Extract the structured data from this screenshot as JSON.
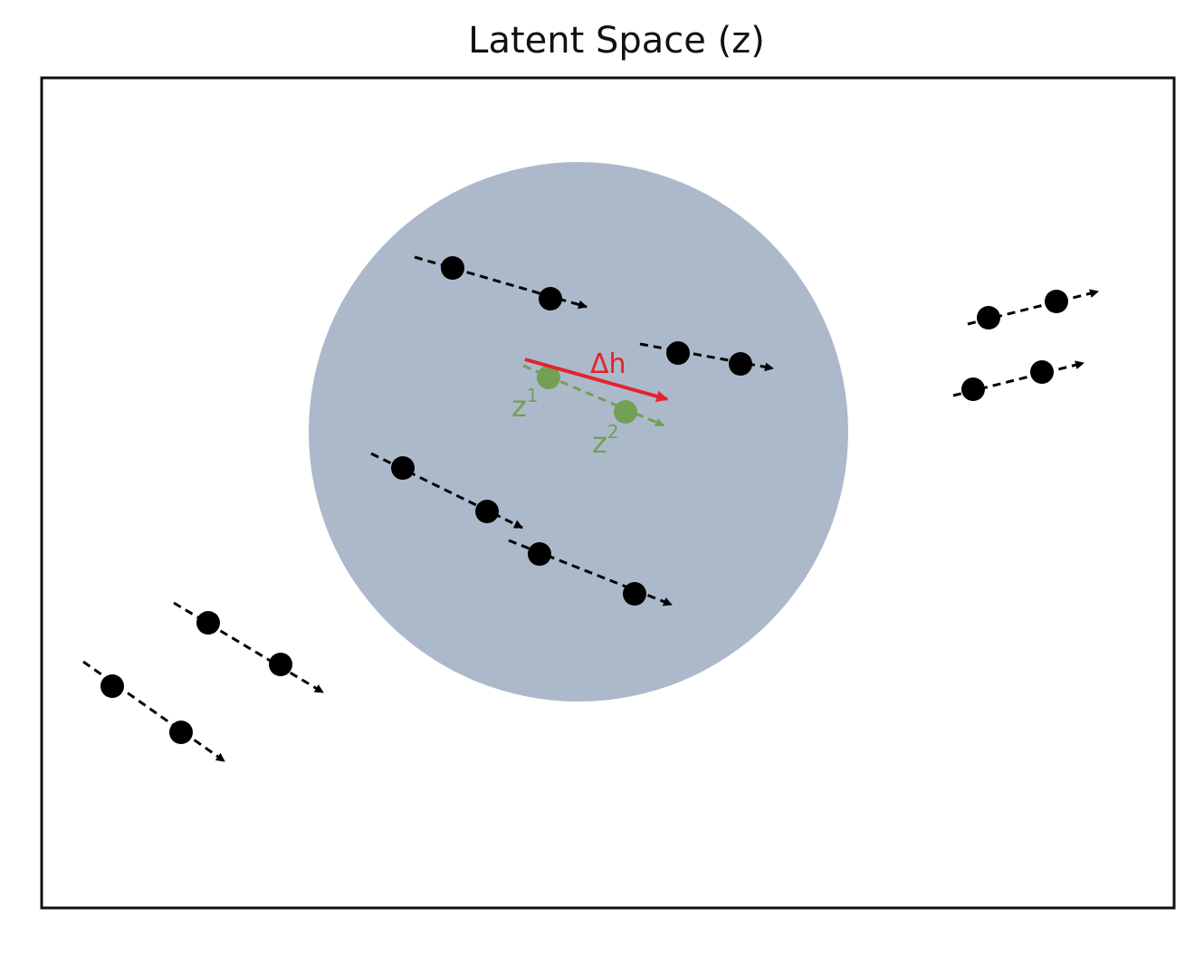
{
  "title": "Latent Space (z)",
  "colors": {
    "frame": "#111111",
    "region": "#acb9cb",
    "trajectory": "#000000",
    "highlight": "#72a055",
    "delta_arrow": "#e3232a"
  },
  "labels": {
    "delta": "Δh",
    "z1_base": "z",
    "z1_sup": "1",
    "z2_base": "z",
    "z2_sup": "2"
  }
}
